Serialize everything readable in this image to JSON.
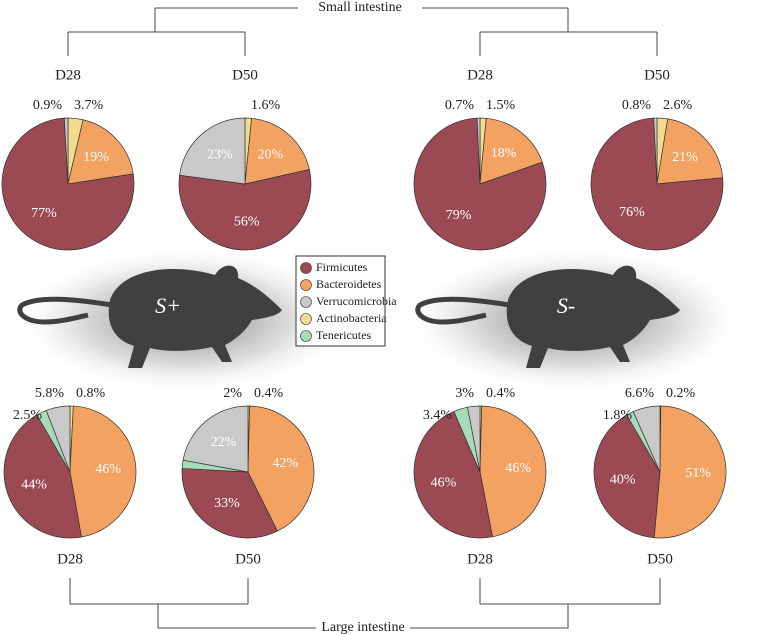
{
  "sections": {
    "small": "Small intestine",
    "large": "Large intestine"
  },
  "groups": [
    "S+",
    "S-"
  ],
  "legend": {
    "names": [
      "Firmicutes",
      "Bacteroidetes",
      "Verrucomicrobia",
      "Actinobacteria",
      "Tenericutes"
    ],
    "colors": [
      "#9b4a54",
      "#f3a262",
      "#c9c9c9",
      "#f2dd8e",
      "#a7dcb8"
    ]
  },
  "chart_data": [
    {
      "type": "pie",
      "title": "D28",
      "values": [
        77,
        19,
        0.9,
        3.7,
        0
      ],
      "value_labels": [
        "77%",
        "19%",
        "0.9%",
        "3.7%",
        null
      ]
    },
    {
      "type": "pie",
      "title": "D50",
      "values": [
        56,
        20,
        23,
        1.6,
        0
      ],
      "value_labels": [
        "56%",
        "20%",
        "23%",
        "1.6%",
        null
      ]
    },
    {
      "type": "pie",
      "title": "D28",
      "values": [
        79,
        18,
        0.7,
        1.5,
        0
      ],
      "value_labels": [
        "79%",
        "18%",
        "0.7%",
        "1.5%",
        null
      ]
    },
    {
      "type": "pie",
      "title": "D50",
      "values": [
        76,
        21,
        0.8,
        2.6,
        0
      ],
      "value_labels": [
        "76%",
        "21%",
        "0.8%",
        "2.6%",
        null
      ]
    },
    {
      "type": "pie",
      "title": "D28",
      "values": [
        44,
        46,
        5.8,
        0.8,
        2.5
      ],
      "value_labels": [
        "44%",
        "46%",
        "5.8%",
        "0.8%",
        "2.5%"
      ]
    },
    {
      "type": "pie",
      "title": "D50",
      "values": [
        33,
        42,
        22,
        0.4,
        2
      ],
      "value_labels": [
        "33%",
        "42%",
        "22%",
        "0.4%",
        "2%"
      ]
    },
    {
      "type": "pie",
      "title": "D28",
      "values": [
        46,
        46,
        3,
        0.4,
        3.4
      ],
      "value_labels": [
        "46%",
        "46%",
        "3%",
        "0.4%",
        "3.4%"
      ]
    },
    {
      "type": "pie",
      "title": "D50",
      "values": [
        40,
        51,
        6.6,
        0.2,
        1.8
      ],
      "value_labels": [
        "40%",
        "51%",
        "6.6%",
        "0.2%",
        "1.8%"
      ]
    }
  ]
}
